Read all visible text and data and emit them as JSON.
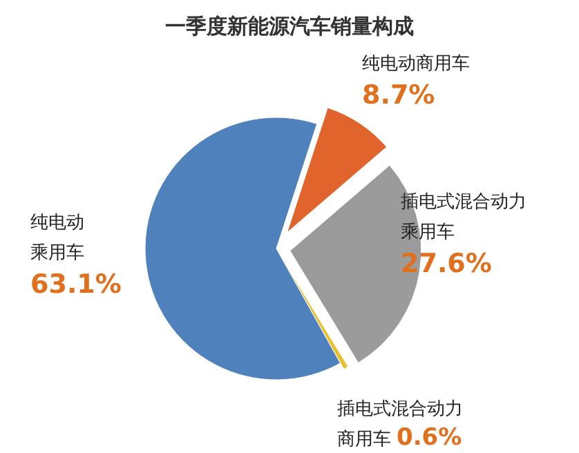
{
  "chart_data": {
    "type": "pie",
    "title": "一季度新能源汽车销量构成",
    "categories": [
      "纯电动商用车",
      "插电式混合动力乘用车",
      "插电式混合动力商用车",
      "纯电动乘用车"
    ],
    "values": [
      8.7,
      27.6,
      0.6,
      63.1
    ],
    "colors": [
      "#e0642c",
      "#9b9b9b",
      "#e8c02c",
      "#4f81bd"
    ],
    "value_labels": [
      "8.7%",
      "27.6%",
      "0.6%",
      "63.1%"
    ]
  }
}
